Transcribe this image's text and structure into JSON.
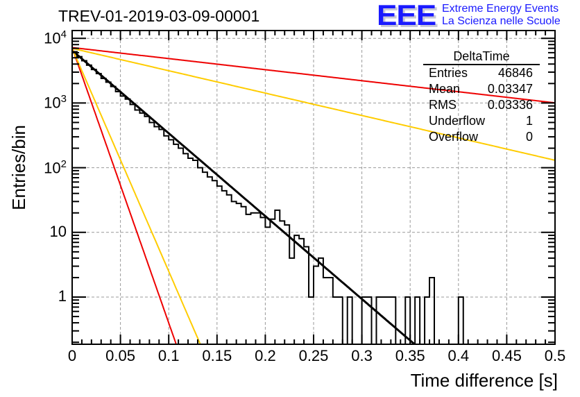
{
  "title": "TREV-01-2019-03-09-00001",
  "logo": {
    "mark": "EEE",
    "line1": "Extreme Energy Events",
    "line2": "La Scienza nelle Scuole",
    "color": "#1a1aff"
  },
  "stats_box": {
    "name": "DeltaTime",
    "rows": [
      {
        "label": "Entries",
        "value": "46846"
      },
      {
        "label": "Mean",
        "value": "0.03347"
      },
      {
        "label": "RMS",
        "value": "0.03336"
      },
      {
        "label": "Underflow",
        "value": "1"
      },
      {
        "label": "Overflow",
        "value": "0"
      }
    ]
  },
  "chart_data": {
    "type": "line",
    "title": "TREV-01-2019-03-09-00001",
    "xlabel": "Time difference [s]",
    "ylabel": "Entries/bin",
    "xlim": [
      0,
      0.5
    ],
    "ylim": [
      0.187,
      13000
    ],
    "yscale": "log",
    "grid": true,
    "legend": "top-right stats box",
    "x_ticks": [
      "0",
      "0.05",
      "0.1",
      "0.15",
      "0.2",
      "0.25",
      "0.3",
      "0.35",
      "0.4",
      "0.45",
      "0.5"
    ],
    "x_tick_values": [
      0,
      0.05,
      0.1,
      0.15,
      0.2,
      0.25,
      0.3,
      0.35,
      0.4,
      0.45,
      0.5
    ],
    "y_ticks": [
      {
        "value": 10000,
        "base": "10",
        "exp": "4"
      },
      {
        "value": 1000,
        "base": "10",
        "exp": "3"
      },
      {
        "value": 100,
        "base": "10",
        "exp": "2"
      },
      {
        "value": 10,
        "base": "10",
        "exp": ""
      },
      {
        "value": 1,
        "base": "1",
        "exp": ""
      }
    ],
    "histogram": {
      "name": "DeltaTime",
      "bin_width": 0.005,
      "x_start": 0,
      "color": "#000000",
      "values": [
        6200,
        5200,
        4500,
        3850,
        3300,
        2850,
        2400,
        2100,
        1800,
        1500,
        1280,
        1150,
        950,
        780,
        700,
        620,
        500,
        430,
        390,
        310,
        270,
        230,
        200,
        165,
        140,
        130,
        100,
        85,
        72,
        63,
        52,
        44,
        38,
        30,
        28,
        25,
        19,
        20,
        20,
        17,
        12,
        16,
        22,
        15,
        13,
        4,
        9,
        8,
        6,
        1,
        3,
        4,
        2,
        2,
        1,
        1,
        0,
        1,
        0,
        0,
        1,
        1,
        0,
        1,
        1,
        1,
        1,
        0,
        0,
        1,
        0,
        1,
        0,
        1,
        2,
        0,
        0,
        0,
        0,
        0,
        1,
        0,
        0,
        0,
        0,
        0,
        0,
        0,
        0,
        0,
        0,
        0,
        0,
        0,
        0,
        0,
        0,
        0,
        0,
        0
      ]
    },
    "series": [
      {
        "name": "fit",
        "color": "#000000",
        "kind": "exponential",
        "a": 6500,
        "tau": 0.0339,
        "x_range": [
          0,
          0.5
        ]
      },
      {
        "name": "red-steep",
        "color": "#ee0000",
        "kind": "exponential",
        "a": 7200,
        "tau": 0.0102,
        "x_range": [
          0,
          0.5
        ]
      },
      {
        "name": "yellow-steep",
        "color": "#ffcc00",
        "kind": "exponential",
        "a": 7000,
        "tau": 0.0126,
        "x_range": [
          0,
          0.5
        ]
      },
      {
        "name": "red-shallow",
        "color": "#ee0000",
        "kind": "exponential",
        "a": 7200,
        "tau": 0.254,
        "x_range": [
          0,
          0.5
        ]
      },
      {
        "name": "yellow-shallow",
        "color": "#ffcc00",
        "kind": "exponential",
        "a": 7000,
        "tau": 0.1255,
        "x_range": [
          0,
          0.5
        ]
      }
    ]
  }
}
